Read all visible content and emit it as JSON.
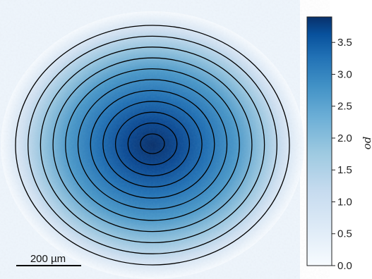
{
  "image": {
    "colormap": "Blues",
    "contour_color": "#000000",
    "contour_count": 11
  },
  "colorbar": {
    "label": "od",
    "min": 0.0,
    "max": 3.9,
    "ticks": [
      "0.0",
      "0.5",
      "1.0",
      "1.5",
      "2.0",
      "2.5",
      "3.0",
      "3.5"
    ],
    "tick_values": [
      0.0,
      0.5,
      1.0,
      1.5,
      2.0,
      2.5,
      3.0,
      3.5
    ],
    "color_low": "#f7fbff",
    "color_high": "#08306b"
  },
  "scale_bar": {
    "label": "200 µm"
  }
}
